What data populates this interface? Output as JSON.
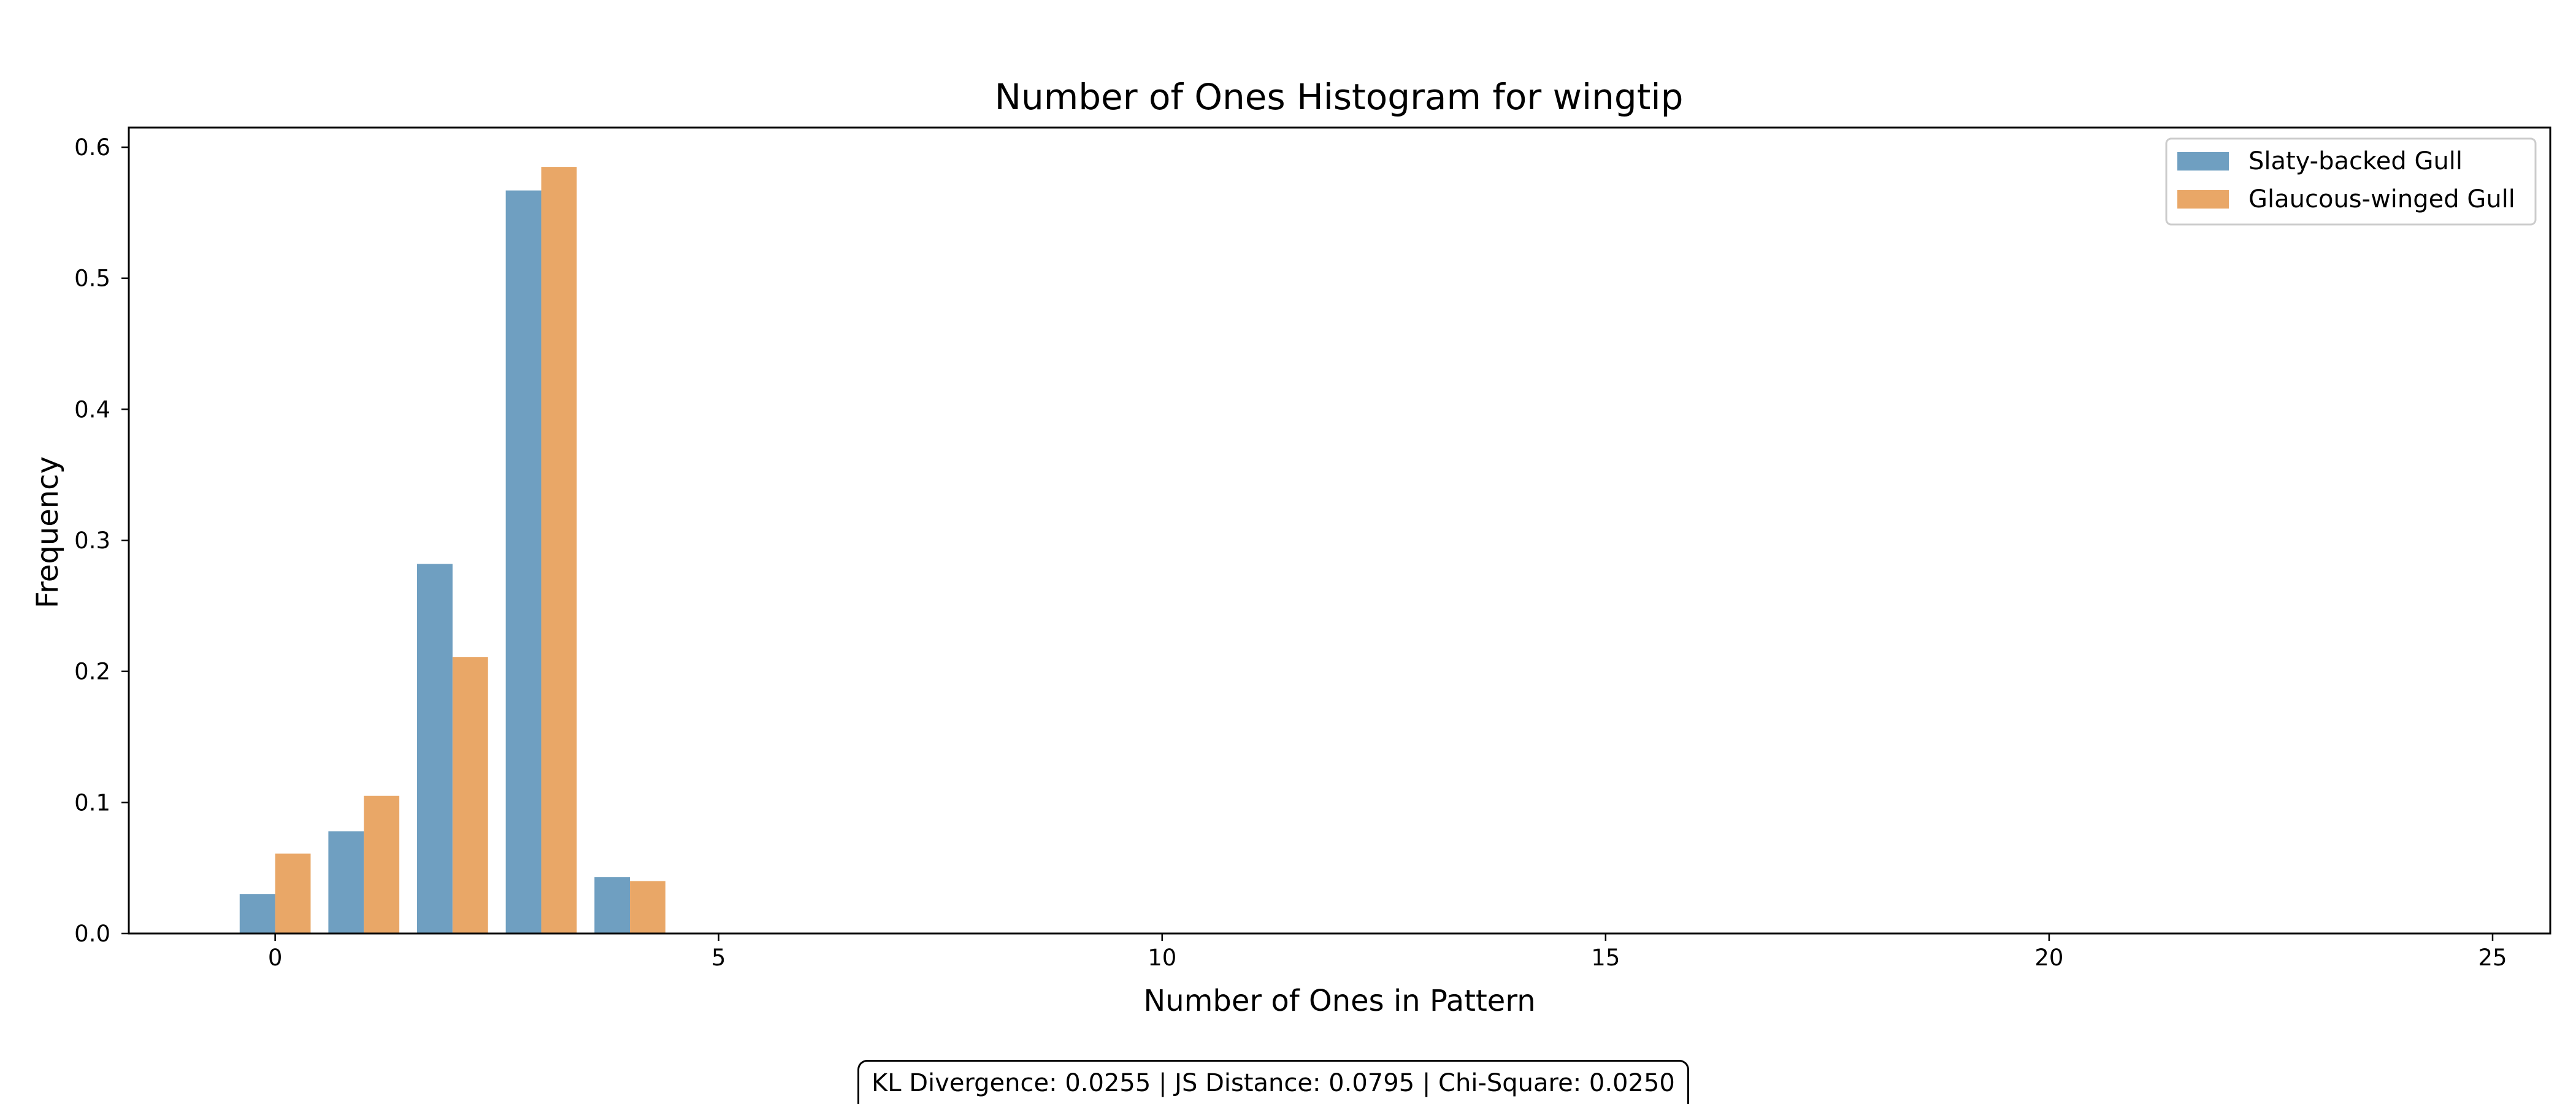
{
  "chart_data": {
    "type": "bar",
    "title": "Number of Ones Histogram for wingtip",
    "xlabel": "Number of Ones in Pattern",
    "ylabel": "Frequency",
    "x": [
      0,
      1,
      2,
      3,
      4
    ],
    "series": [
      {
        "name": "Slaty-backed Gull",
        "color": "#6f9fc1",
        "values": [
          0.03,
          0.078,
          0.282,
          0.567,
          0.043
        ]
      },
      {
        "name": "Glaucous-winged Gull",
        "color": "#e9a767",
        "values": [
          0.061,
          0.105,
          0.211,
          0.585,
          0.04
        ]
      }
    ],
    "xlim": [
      -1.65,
      25.65
    ],
    "ylim": [
      0,
      0.615
    ],
    "xticks": [
      0,
      5,
      10,
      15,
      20,
      25
    ],
    "yticks": [
      0.0,
      0.1,
      0.2,
      0.3,
      0.4,
      0.5,
      0.6
    ],
    "grid": false,
    "legend_position": "top-right"
  },
  "stats_text": "KL Divergence: 0.0255 | JS Distance: 0.0795 | Chi-Square: 0.0250"
}
